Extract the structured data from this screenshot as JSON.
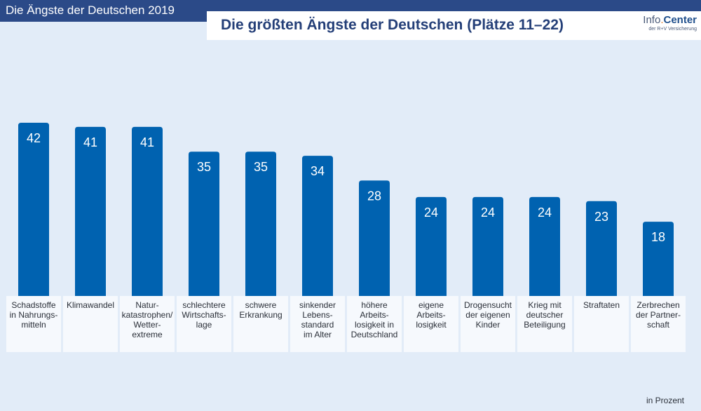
{
  "header": {
    "banner_title": "Die Ängste der Deutschen 2019",
    "main_title": "Die größten Ängste der Deutschen (Plätze 11–22)",
    "logo": {
      "part1": "Info",
      "dot": ".",
      "part2": "Center",
      "sub": "der R+V Versicherung"
    }
  },
  "colors": {
    "bar": "#0062b0",
    "banner": "#2b4a88",
    "background": "#e2ecf8",
    "title": "#243f78"
  },
  "chart_data": {
    "type": "bar",
    "title": "Die größten Ängste der Deutschen (Plätze 11–22)",
    "xlabel": "",
    "ylabel": "in Prozent",
    "unit_note": "in Prozent",
    "ylim": [
      0,
      42
    ],
    "grid": false,
    "legend": "none",
    "categories": [
      "Schadstoffe\nin Nahrungs-\nmitteln",
      "Klimawandel",
      "Natur-\nkatastrophen/\nWetter-\nextreme",
      "schlechtere\nWirtschafts-\nlage",
      "schwere\nErkrankung",
      "sinkender\nLebens-\nstandard\nim Alter",
      "höhere\nArbeits-\nlosigkeit in\nDeutschland",
      "eigene\nArbeits-\nlosigkeit",
      "Drogensucht\nder eigenen\nKinder",
      "Krieg mit\ndeutscher\nBeteiligung",
      "Straftaten",
      "Zerbrechen\nder Partner-\nschaft"
    ],
    "values": [
      42,
      41,
      41,
      35,
      35,
      34,
      28,
      24,
      24,
      24,
      23,
      18
    ]
  }
}
